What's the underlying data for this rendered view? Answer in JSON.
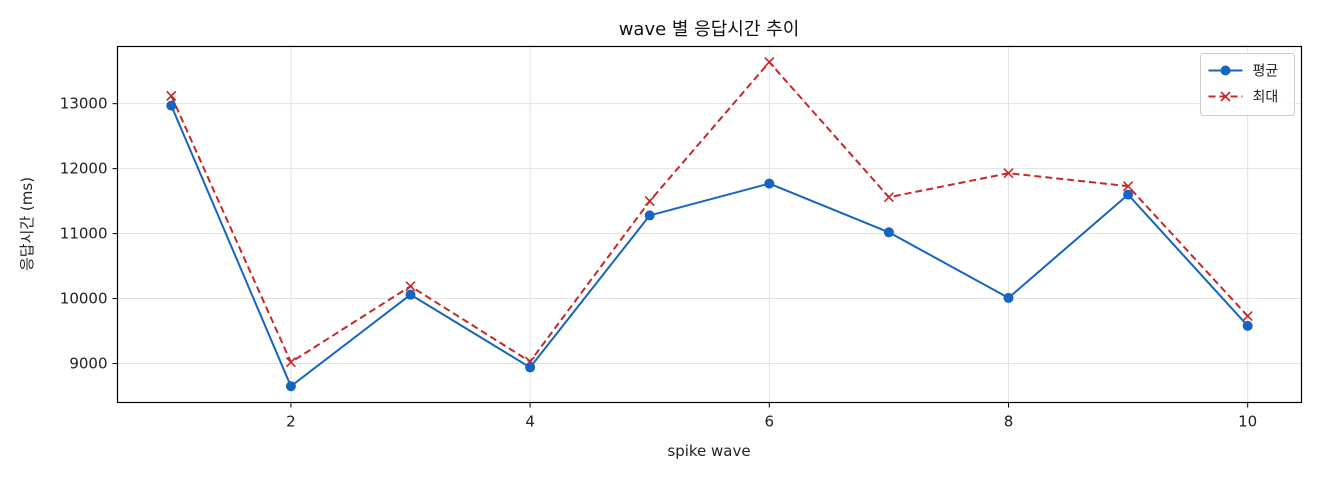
{
  "chart_data": {
    "type": "line",
    "title": "wave 별 응답시간 추이",
    "xlabel": "spike wave",
    "ylabel": "응답시간 (ms)",
    "x": [
      1,
      2,
      3,
      4,
      5,
      6,
      7,
      8,
      9,
      10
    ],
    "xlim": [
      0.55,
      10.45
    ],
    "ylim": [
      8400,
      13880
    ],
    "xticks": [
      2,
      4,
      6,
      8,
      10
    ],
    "yticks": [
      9000,
      10000,
      11000,
      12000,
      13000
    ],
    "grid": true,
    "legend_position": "top-right",
    "series": [
      {
        "name": "평균",
        "color": "#1565c0",
        "marker": "circle",
        "line_style": "solid",
        "values": [
          12970,
          8650,
          10060,
          8940,
          11280,
          11770,
          11020,
          10010,
          11600,
          9580
        ]
      },
      {
        "name": "최대",
        "color": "#c62828",
        "marker": "x",
        "line_style": "dashed",
        "values": [
          13120,
          9020,
          10190,
          9030,
          11500,
          13640,
          11560,
          11930,
          11730,
          9730
        ]
      }
    ]
  }
}
